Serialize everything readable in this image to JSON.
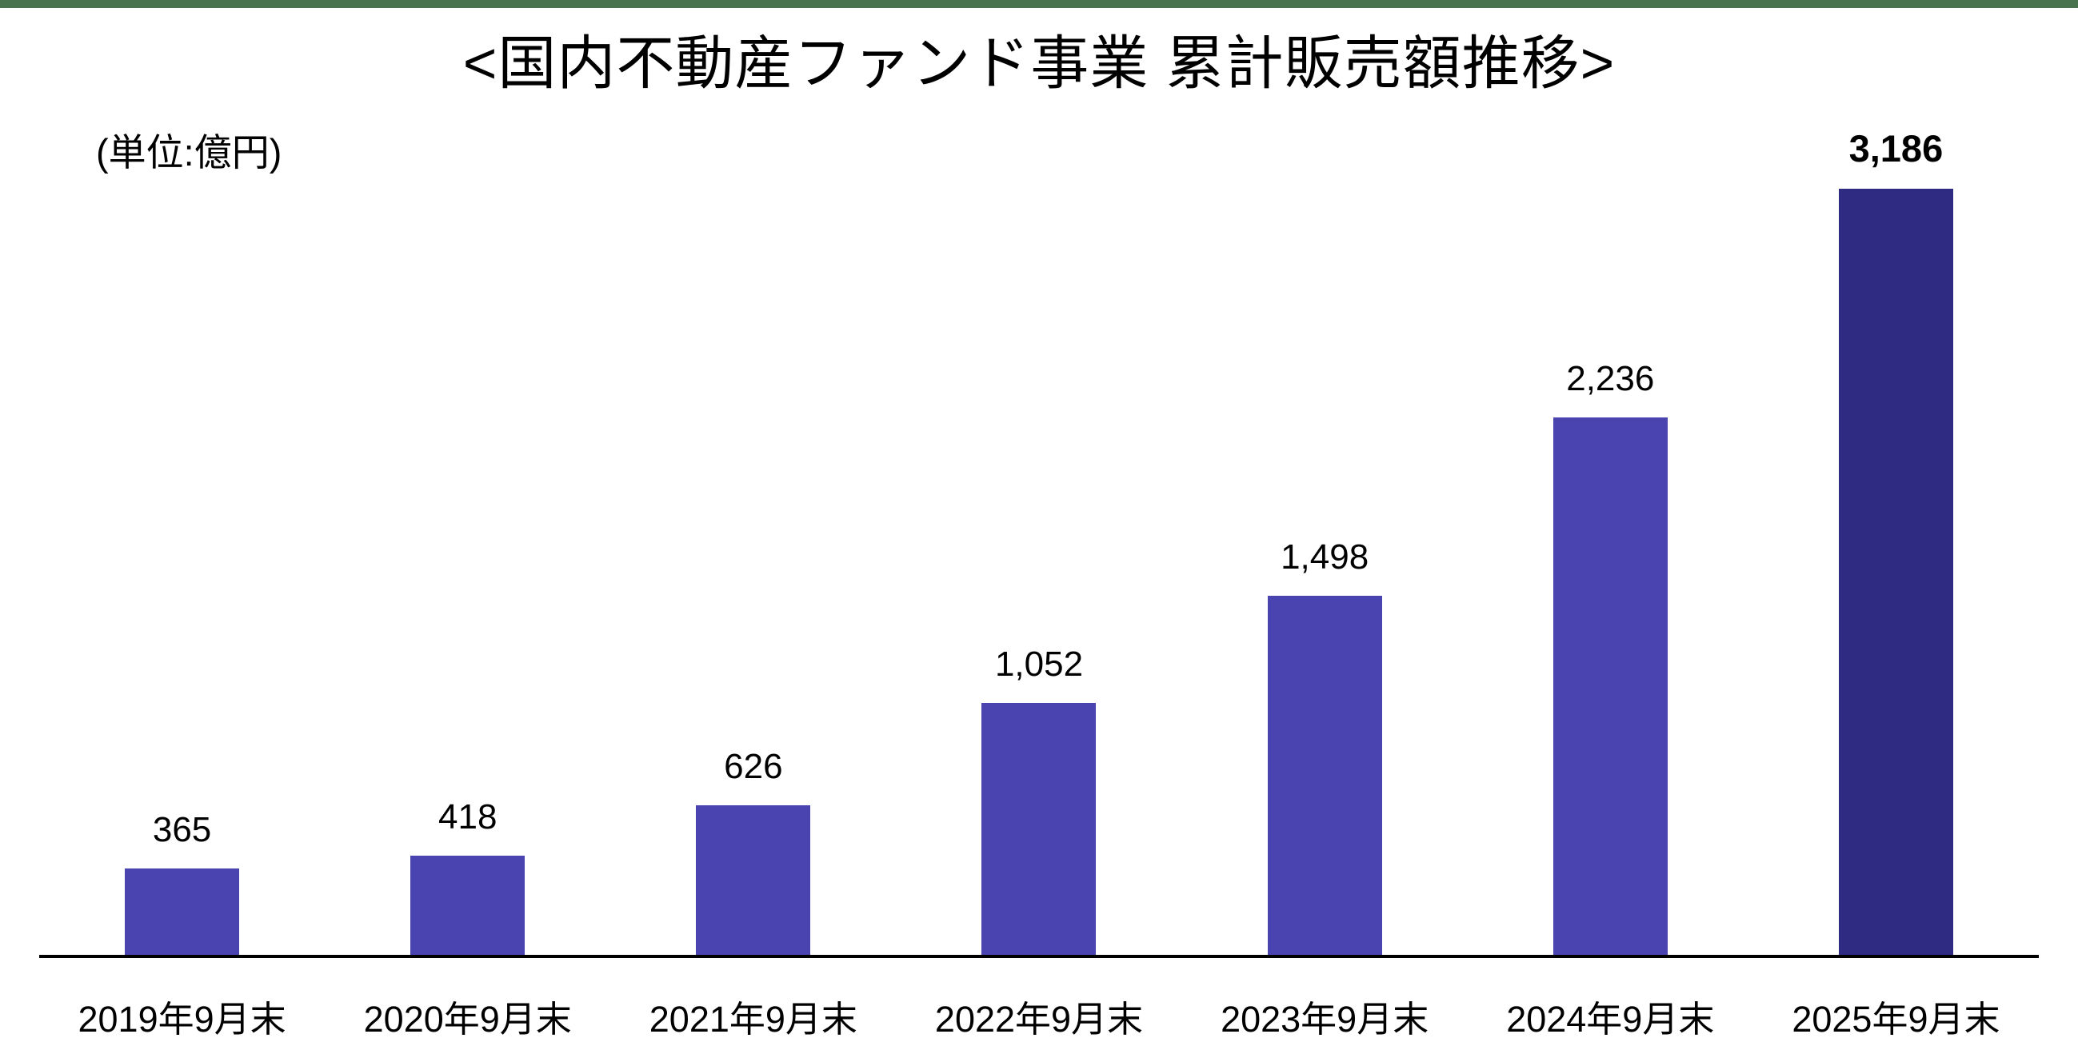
{
  "page": {
    "background": "#FFFFFF",
    "top_strip_color": "#48734E"
  },
  "chart_data": {
    "type": "bar",
    "title": "<国内不動産ファンド事業 累計販売額推移>",
    "unit_label": "(単位:億円)",
    "categories": [
      "2019年9月末",
      "2020年9月末",
      "2021年9月末",
      "2022年9月末",
      "2023年9月末",
      "2024年9月末",
      "2025年9月末"
    ],
    "values": [
      365,
      418,
      626,
      1052,
      1498,
      2236,
      3186
    ],
    "value_labels": [
      "365",
      "418",
      "626",
      "1,052",
      "1,498",
      "2,236",
      "3,186"
    ],
    "bar_color": "#4A44B1",
    "emphasized_bar_color": "#2F2A82",
    "emphasized_index": 6,
    "axis_color": "#000000",
    "text_color": "#000000",
    "xlabel": "",
    "ylabel": "",
    "ylim": [
      0,
      3186
    ],
    "grid": false,
    "legend": false
  }
}
